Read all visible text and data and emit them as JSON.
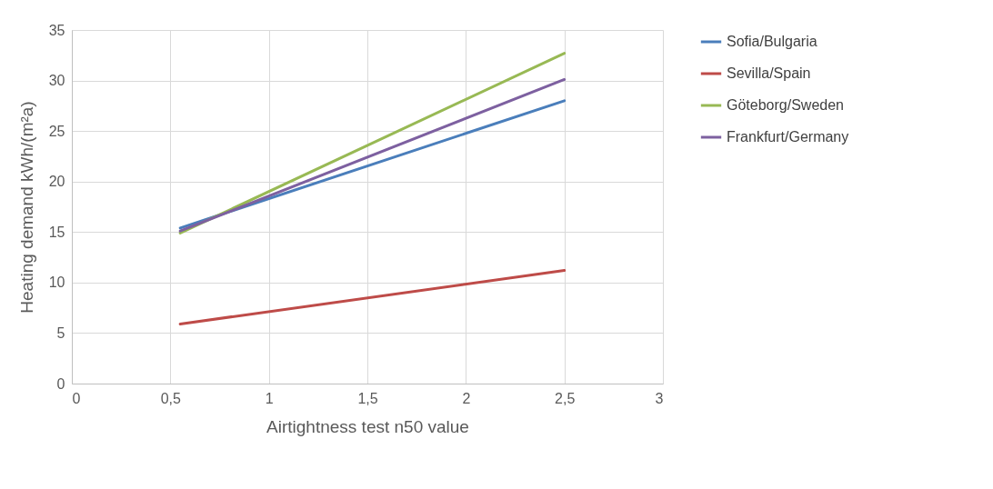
{
  "chart_data": {
    "type": "line",
    "xlabel": "Airtightness test n50 value",
    "ylabel": "Heating demand kWh/(m²a)",
    "x": [
      0.55,
      2.5
    ],
    "series": [
      {
        "name": "Sofia/Bulgaria",
        "color": "#4a7ebb",
        "values": [
          15.4,
          28.0
        ]
      },
      {
        "name": "Sevilla/Spain",
        "color": "#be4b48",
        "values": [
          5.9,
          11.2
        ]
      },
      {
        "name": "Göteborg/Sweden",
        "color": "#98b954",
        "values": [
          14.9,
          32.7
        ]
      },
      {
        "name": "Frankfurt/Germany",
        "color": "#7d60a0",
        "values": [
          15.1,
          30.1
        ]
      }
    ],
    "xlim": [
      0,
      3
    ],
    "xticks": [
      0,
      {
        "value": 0.5,
        "label": "0,5"
      },
      1,
      {
        "value": 1.5,
        "label": "1,5"
      },
      2,
      {
        "value": 2.5,
        "label": "2,5"
      },
      3
    ],
    "ylim": [
      0,
      35
    ],
    "yticks": [
      0,
      5,
      10,
      15,
      20,
      25,
      30,
      35
    ],
    "grid": true,
    "legend": "right"
  }
}
